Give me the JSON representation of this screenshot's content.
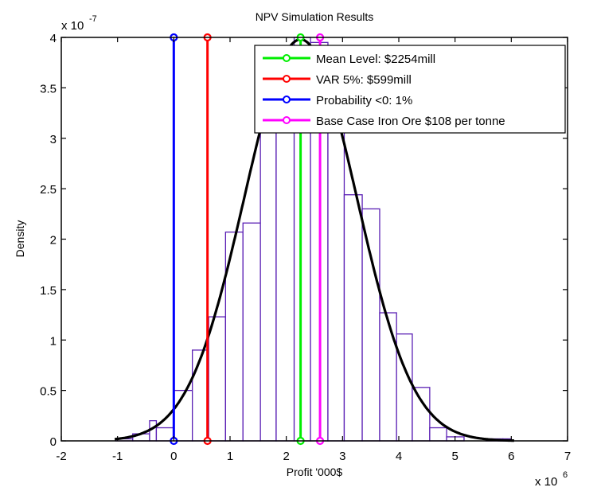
{
  "chart_data": {
    "type": "bar",
    "title": "NPV Simulation Results",
    "xlabel": "Profit '000$",
    "ylabel": "Density",
    "x_multiplier_label": "x 10",
    "x_multiplier_exp": "6",
    "y_multiplier_label": "x 10",
    "y_multiplier_exp": "-7",
    "xlim": [
      -2,
      7
    ],
    "ylim": [
      0,
      4
    ],
    "x_ticks": [
      -2,
      -1,
      0,
      1,
      2,
      3,
      4,
      5,
      6,
      7
    ],
    "x_tick_labels": [
      "-2",
      "-1",
      "0",
      "1",
      "2",
      "3",
      "4",
      "5",
      "6",
      "7"
    ],
    "y_ticks": [
      0,
      0.5,
      1,
      1.5,
      2,
      2.5,
      3,
      3.5,
      4
    ],
    "y_tick_labels": [
      "0",
      "0.5",
      "1",
      "1.5",
      "2",
      "2.5",
      "3",
      "3.5",
      "4"
    ],
    "grid": false,
    "legend_position": "top-right",
    "histogram": {
      "color": "#5a1fb4",
      "bin_edges": [
        -1.03,
        -0.73,
        -0.43,
        -0.31,
        0.0,
        0.33,
        0.62,
        0.92,
        1.23,
        1.54,
        1.82,
        2.14,
        2.43,
        2.74,
        3.03,
        3.35,
        3.66,
        3.96,
        4.24,
        4.55,
        4.85,
        5.16,
        5.55,
        5.85,
        6.0
      ],
      "values": [
        0.02,
        0.07,
        0.2,
        0.13,
        0.5,
        0.9,
        1.23,
        2.07,
        2.16,
        3.2,
        3.8,
        4.0,
        3.95,
        3.6,
        2.44,
        2.3,
        1.27,
        1.06,
        0.53,
        0.13,
        0.04,
        0.0,
        0.02,
        0.02
      ]
    },
    "fit_curve": {
      "color": "#000000",
      "mean": 2.254,
      "sd": 1.0,
      "x_range": [
        -1.05,
        6.05
      ]
    },
    "vlines": [
      {
        "label": "Mean Level: $2254mill",
        "x": 2.254,
        "color": "#00ee00"
      },
      {
        "label": "VAR 5%: $599mill",
        "x": 0.599,
        "color": "#ff0000"
      },
      {
        "label": "Probability <0: 1%",
        "x": 0.0,
        "color": "#0000ff"
      },
      {
        "label": "Base Case Iron Ore $108 per tonne",
        "x": 2.6,
        "color": "#ff00ff"
      }
    ],
    "legend": [
      "Mean Level: $2254mill",
      "VAR 5%: $599mill",
      "Probability <0: 1%",
      "Base Case Iron Ore $108 per tonne"
    ]
  }
}
